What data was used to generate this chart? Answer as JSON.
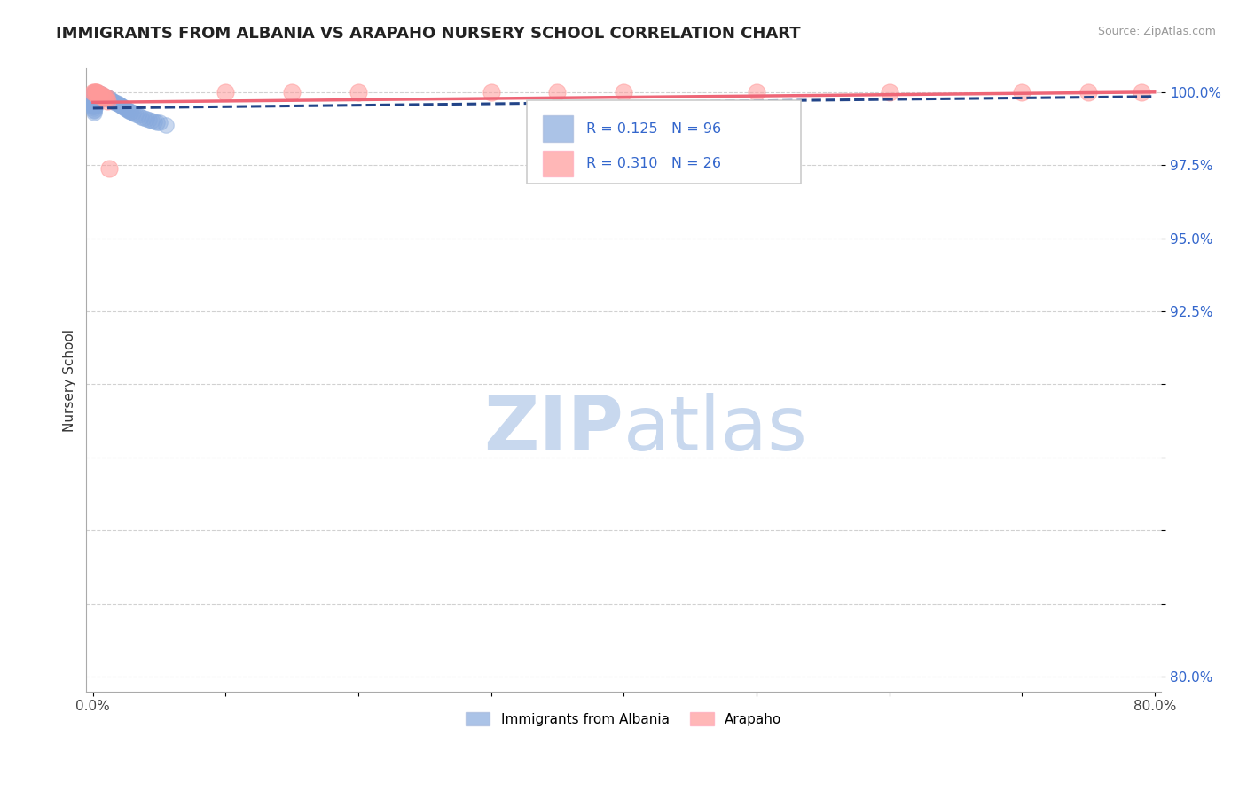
{
  "title": "IMMIGRANTS FROM ALBANIA VS ARAPAHO NURSERY SCHOOL CORRELATION CHART",
  "source": "Source: ZipAtlas.com",
  "ylabel": "Nursery School",
  "r_blue": 0.125,
  "n_blue": 96,
  "r_pink": 0.31,
  "n_pink": 26,
  "xlim": [
    -0.005,
    0.805
  ],
  "ylim": [
    0.795,
    1.008
  ],
  "yticks": [
    0.8,
    0.825,
    0.85,
    0.875,
    0.9,
    0.925,
    0.95,
    0.975,
    1.0
  ],
  "ytick_labels": [
    "80.0%",
    "",
    "",
    "",
    "",
    "92.5%",
    "95.0%",
    "97.5%",
    "100.0%"
  ],
  "xticks": [
    0.0,
    0.1,
    0.2,
    0.3,
    0.4,
    0.5,
    0.6,
    0.7,
    0.8
  ],
  "xtick_labels": [
    "0.0%",
    "",
    "",
    "",
    "",
    "",
    "",
    "",
    "80.0%"
  ],
  "color_blue": "#88AADD",
  "color_pink": "#FF9999",
  "color_blue_line": "#224488",
  "color_pink_line": "#EE6677",
  "legend_blue_label": "Immigrants from Albania",
  "legend_pink_label": "Arapaho",
  "watermark_zip": "ZIP",
  "watermark_atlas": "atlas",
  "watermark_color": "#C8D8EE",
  "blue_scatter_x": [
    0.0,
    0.0,
    0.0,
    0.0,
    0.0,
    0.0,
    0.0,
    0.0,
    0.0,
    0.0,
    0.001,
    0.001,
    0.001,
    0.001,
    0.001,
    0.001,
    0.001,
    0.001,
    0.001,
    0.001,
    0.001,
    0.001,
    0.001,
    0.001,
    0.001,
    0.002,
    0.002,
    0.002,
    0.002,
    0.002,
    0.002,
    0.002,
    0.002,
    0.002,
    0.002,
    0.003,
    0.003,
    0.003,
    0.003,
    0.003,
    0.003,
    0.003,
    0.003,
    0.004,
    0.004,
    0.004,
    0.004,
    0.004,
    0.005,
    0.005,
    0.005,
    0.005,
    0.006,
    0.006,
    0.006,
    0.007,
    0.007,
    0.007,
    0.008,
    0.008,
    0.009,
    0.009,
    0.01,
    0.01,
    0.011,
    0.011,
    0.012,
    0.013,
    0.014,
    0.015,
    0.016,
    0.017,
    0.018,
    0.019,
    0.02,
    0.021,
    0.022,
    0.023,
    0.024,
    0.025,
    0.026,
    0.027,
    0.028,
    0.029,
    0.03,
    0.032,
    0.034,
    0.036,
    0.038,
    0.04,
    0.042,
    0.044,
    0.046,
    0.048,
    0.05,
    0.055
  ],
  "blue_scatter_y": [
    0.9995,
    0.999,
    0.9985,
    0.998,
    0.9975,
    0.997,
    0.9965,
    0.996,
    0.9955,
    0.995,
    0.9998,
    0.9995,
    0.999,
    0.9985,
    0.998,
    0.9975,
    0.997,
    0.9965,
    0.996,
    0.9955,
    0.995,
    0.9945,
    0.994,
    0.9935,
    0.993,
    0.9998,
    0.9995,
    0.999,
    0.9985,
    0.998,
    0.9975,
    0.997,
    0.9965,
    0.996,
    0.9955,
    0.9998,
    0.9995,
    0.999,
    0.9985,
    0.998,
    0.9975,
    0.997,
    0.9965,
    0.9995,
    0.999,
    0.9985,
    0.998,
    0.9975,
    0.9995,
    0.999,
    0.9985,
    0.998,
    0.9992,
    0.9987,
    0.9982,
    0.999,
    0.9985,
    0.998,
    0.9988,
    0.9983,
    0.9985,
    0.998,
    0.9983,
    0.9978,
    0.998,
    0.9975,
    0.9978,
    0.9975,
    0.9972,
    0.997,
    0.9967,
    0.9964,
    0.9962,
    0.9959,
    0.9956,
    0.9953,
    0.995,
    0.9948,
    0.9945,
    0.9942,
    0.994,
    0.9937,
    0.9934,
    0.9932,
    0.993,
    0.9925,
    0.992,
    0.9916,
    0.9912,
    0.9908,
    0.9905,
    0.9902,
    0.9899,
    0.9897,
    0.9895,
    0.9888
  ],
  "pink_scatter_x": [
    0.0,
    0.001,
    0.002,
    0.002,
    0.003,
    0.003,
    0.004,
    0.005,
    0.006,
    0.007,
    0.008,
    0.009,
    0.01,
    0.011,
    0.012,
    0.1,
    0.15,
    0.2,
    0.3,
    0.35,
    0.4,
    0.5,
    0.6,
    0.7,
    0.75,
    0.79
  ],
  "pink_scatter_y": [
    1.0,
    1.0,
    1.0,
    1.0,
    1.0,
    0.999,
    0.999,
    0.999,
    0.999,
    0.999,
    0.998,
    0.998,
    0.998,
    0.997,
    0.974,
    1.0,
    1.0,
    1.0,
    1.0,
    1.0,
    1.0,
    1.0,
    1.0,
    1.0,
    1.0,
    1.0
  ],
  "blue_trend_x": [
    0.0,
    0.8
  ],
  "blue_trend_y": [
    0.9945,
    0.9985
  ],
  "pink_trend_x": [
    0.0,
    0.8
  ],
  "pink_trend_y": [
    0.9965,
    1.0
  ]
}
